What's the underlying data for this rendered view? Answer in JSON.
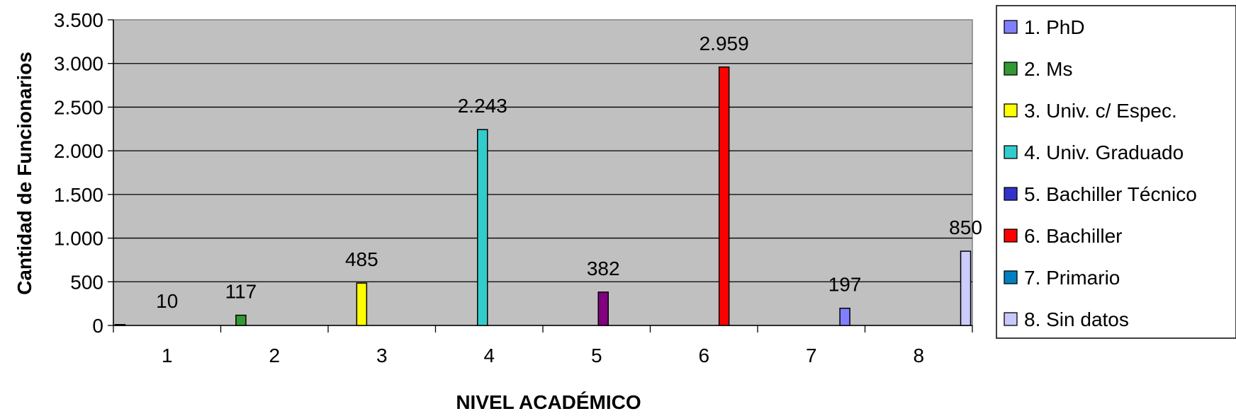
{
  "chart_data": {
    "type": "bar",
    "categories": [
      "1",
      "2",
      "3",
      "4",
      "5",
      "6",
      "7",
      "8"
    ],
    "values": [
      10,
      117,
      485,
      2243,
      382,
      2959,
      197,
      850
    ],
    "data_labels": [
      "10",
      "117",
      "485",
      "2.243",
      "382",
      "2.959",
      "197",
      "850"
    ],
    "xlabel": "NIVEL ACADÉMICO",
    "ylabel": "Cantidad de Funcionarios",
    "ylim": [
      0,
      3500
    ],
    "y_ticks": [
      0,
      500,
      1000,
      1500,
      2000,
      2500,
      3000,
      3500
    ],
    "y_tick_labels": [
      "0",
      "500",
      "1.000",
      "1.500",
      "2.000",
      "2.500",
      "3.000",
      "3.500"
    ],
    "grid": true,
    "plot_background": "#C0C0C0",
    "legend_position": "right",
    "series": [
      {
        "name": "1. PhD",
        "color": "#8080FF"
      },
      {
        "name": "2. Ms",
        "color": "#339933"
      },
      {
        "name": "3. Univ. c/ Espec.",
        "color": "#FFFF00"
      },
      {
        "name": "4. Univ. Graduado",
        "color": "#33CCCC"
      },
      {
        "name": "5. Bachiller Técnico",
        "color": "#3333CC"
      },
      {
        "name": "6. Bachiller",
        "color": "#FF0000"
      },
      {
        "name": "7. Primario",
        "color": "#0080C0"
      },
      {
        "name": "8. Sin datos",
        "color": "#C8C8FF"
      }
    ],
    "bar_colors": [
      "#8080FF",
      "#339933",
      "#FFFF00",
      "#33CCCC",
      "#800080",
      "#FF0000",
      "#8080FF",
      "#CCCCFF"
    ]
  }
}
